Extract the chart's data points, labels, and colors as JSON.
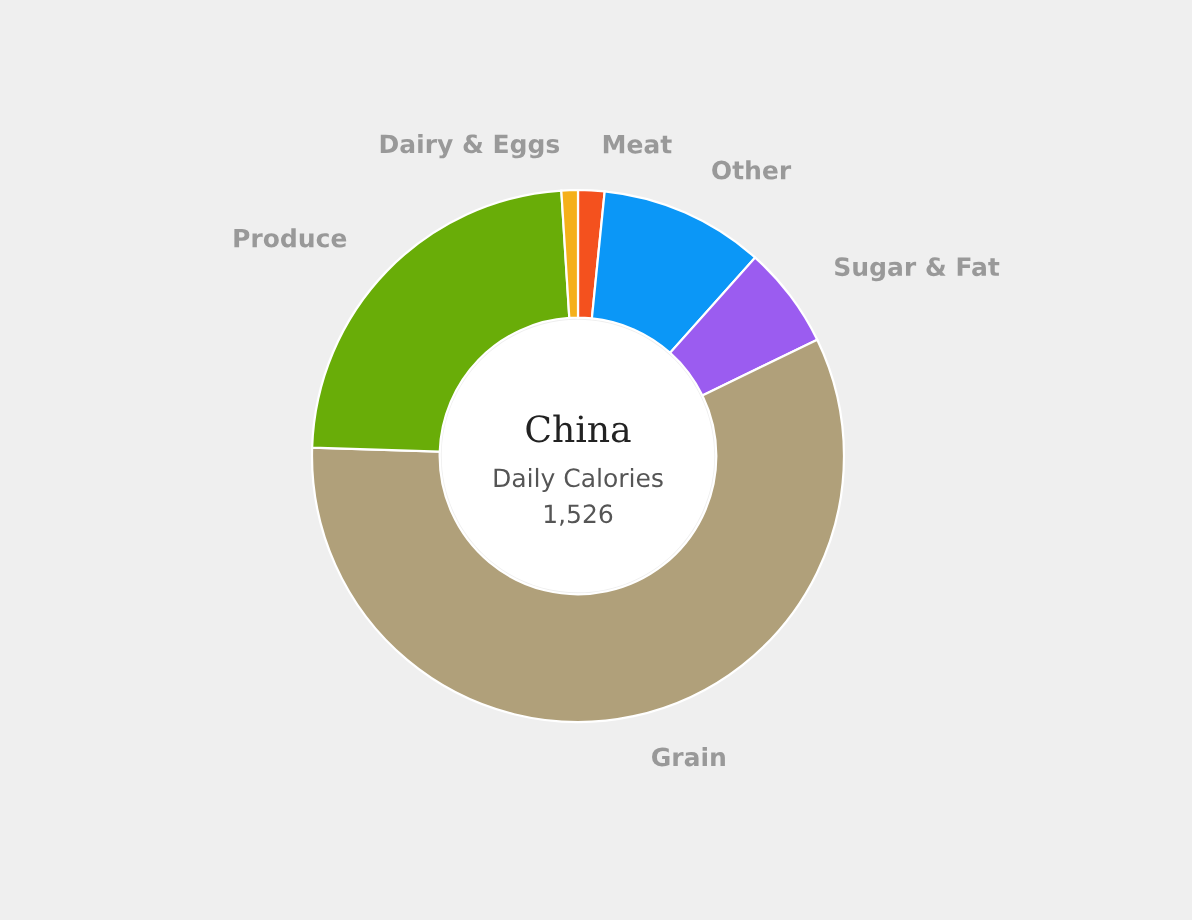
{
  "chart_data": {
    "type": "donut",
    "title": "China",
    "subtitle": "Daily Calories",
    "annotations": [
      "1,526"
    ],
    "categories": [
      "Meat",
      "Other",
      "Sugar & Fat",
      "Grain",
      "Produce",
      "Dairy & Eggs"
    ],
    "values": [
      1.6,
      10,
      6.2,
      57.7,
      23.5,
      1
    ],
    "colors": [
      "#f4511e",
      "#0b97f7",
      "#9b5cf0",
      "#b0a07a",
      "#69ad08",
      "#f5b01a"
    ],
    "legend": false
  }
}
